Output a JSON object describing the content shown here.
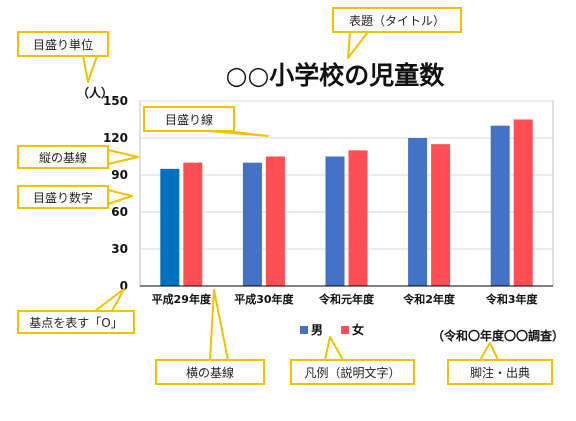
{
  "chart_data": {
    "type": "bar",
    "title": "○○小学校の児童数",
    "ylabel": "（人）",
    "ylim": [
      0,
      150
    ],
    "yticks": [
      0,
      30,
      60,
      90,
      120,
      150
    ],
    "grid": true,
    "legend_position": "bottom",
    "categories": [
      "平成29年度",
      "平成30年度",
      "令和元年度",
      "令和2年度",
      "令和3年度"
    ],
    "series": [
      {
        "name": "男",
        "values": [
          95,
          100,
          105,
          120,
          130
        ],
        "color": "#4472c4"
      },
      {
        "name": "女",
        "values": [
          100,
          105,
          110,
          115,
          135
        ],
        "color": "#ff4f55"
      }
    ],
    "first_bar_highlight_color": "#0070c0",
    "footnote": "（令和〇年度〇〇調査）"
  },
  "callouts": {
    "y_tick_label": "目盛り単位",
    "title": "表題（タイトル）",
    "gridline": "目盛り線",
    "y_axis": "縦の基線",
    "tick_numbers": "目盛り数字",
    "origin": "基点を表す「O」",
    "x_axis": "横の基線",
    "legend": "凡例（説明文字）",
    "footnote": "脚注・出典"
  },
  "colors": {
    "callout_border": "#f2c200",
    "gridline": "#d9d9d9",
    "axis": "#000000"
  }
}
